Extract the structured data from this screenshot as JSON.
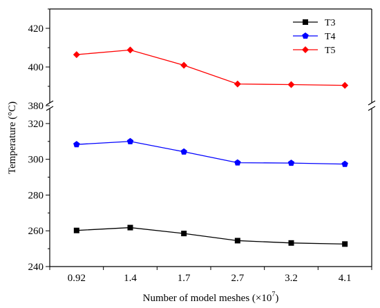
{
  "chart_data": {
    "type": "line",
    "xlabel": "Number of model meshes (×10",
    "xlabel_sup": "7",
    "xlabel_close": ")",
    "ylabel": "Temperature (°C)",
    "categories": [
      "0.92",
      "1.4",
      "1.7",
      "2.7",
      "3.2",
      "4.1"
    ],
    "y_broken_axis": true,
    "y_lower_range": [
      240,
      330
    ],
    "y_upper_range": [
      380,
      430
    ],
    "y_lower_ticks": [
      "240",
      "260",
      "280",
      "300",
      "320"
    ],
    "y_upper_ticks": [
      "380",
      "400",
      "420"
    ],
    "grid": false,
    "legend_position": "top-right",
    "series": [
      {
        "name": "T3",
        "color": "#000000",
        "marker": "square",
        "values": [
          260.2,
          261.8,
          258.5,
          254.5,
          253.2,
          252.6
        ]
      },
      {
        "name": "T4",
        "color": "#0000ff",
        "marker": "pentagon",
        "values": [
          308.3,
          310.0,
          304.2,
          298.1,
          297.9,
          297.3
        ]
      },
      {
        "name": "T5",
        "color": "#ff0000",
        "marker": "diamond",
        "values": [
          406.4,
          408.8,
          400.9,
          391.2,
          390.9,
          390.5
        ]
      }
    ]
  }
}
